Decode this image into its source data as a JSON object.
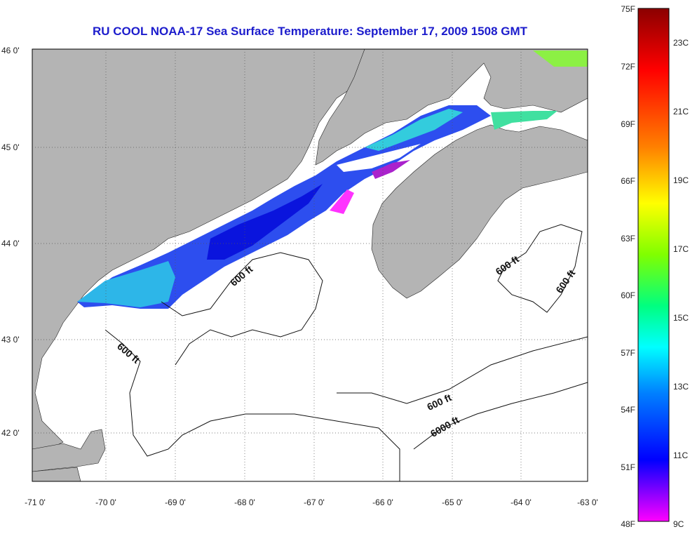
{
  "title": "RU COOL  NOAA-17  Sea Surface Temperature:  September 17, 2009 1508 GMT",
  "colorbar": {
    "gradient": [
      "#8b0000",
      "#ff0000",
      "#ff8000",
      "#ffff00",
      "#80ff00",
      "#00ff80",
      "#00ffff",
      "#0080ff",
      "#0000ff",
      "#ff00ff"
    ],
    "fahrenheit": [
      "75F",
      "72F",
      "69F",
      "66F",
      "63F",
      "60F",
      "57F",
      "54F",
      "51F",
      "48F"
    ],
    "celsius": [
      "23C",
      "21C",
      "19C",
      "17C",
      "15C",
      "13C",
      "11C",
      "9C"
    ]
  },
  "axes": {
    "lat_labels": [
      "46 0'",
      "45 0'",
      "44 0'",
      "43 0'",
      "42 0'"
    ],
    "lon_labels": [
      "-71 0'",
      "-70 0'",
      "-69 0'",
      "-68 0'",
      "-67 0'",
      "-66 0'",
      "-65 0'",
      "-64 0'",
      "-63 0'"
    ]
  },
  "contours": {
    "c1": "600 ft",
    "c2": "600 ft",
    "c3": "600 ft",
    "c4": "600 ft",
    "c5": "600 ft",
    "c6": "6000 ft"
  },
  "colors": {
    "land": "#b4b4b4",
    "title": "#1c1ccc"
  }
}
